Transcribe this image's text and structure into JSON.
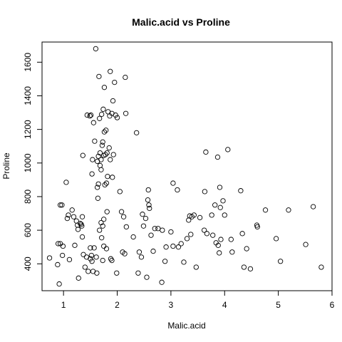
{
  "chart_data": {
    "type": "scatter",
    "title": "Malic.acid vs Proline",
    "xlabel": "Malic.acid",
    "ylabel": "Proline",
    "xlim": [
      0.6,
      6.0
    ],
    "ylim": [
      240,
      1720
    ],
    "xticks": [
      1,
      2,
      3,
      4,
      5,
      6
    ],
    "yticks": [
      400,
      600,
      800,
      1000,
      1200,
      1400,
      1600
    ],
    "grid": false,
    "legend": "none",
    "points": [
      [
        0.74,
        435
      ],
      [
        0.89,
        395
      ],
      [
        0.9,
        520
      ],
      [
        0.92,
        280
      ],
      [
        0.94,
        520
      ],
      [
        0.94,
        750
      ],
      [
        0.97,
        750
      ],
      [
        0.98,
        450
      ],
      [
        0.99,
        505
      ],
      [
        1.05,
        885
      ],
      [
        1.07,
        670
      ],
      [
        1.09,
        690
      ],
      [
        1.11,
        425
      ],
      [
        1.16,
        720
      ],
      [
        1.19,
        680
      ],
      [
        1.21,
        510
      ],
      [
        1.24,
        655
      ],
      [
        1.26,
        630
      ],
      [
        1.27,
        605
      ],
      [
        1.28,
        315
      ],
      [
        1.31,
        640
      ],
      [
        1.33,
        635
      ],
      [
        1.34,
        625
      ],
      [
        1.35,
        680
      ],
      [
        1.35,
        560
      ],
      [
        1.36,
        1045
      ],
      [
        1.37,
        455
      ],
      [
        1.4,
        380
      ],
      [
        1.43,
        440
      ],
      [
        1.44,
        1285
      ],
      [
        1.46,
        355
      ],
      [
        1.49,
        1280
      ],
      [
        1.5,
        495
      ],
      [
        1.5,
        430
      ],
      [
        1.51,
        1285
      ],
      [
        1.52,
        450
      ],
      [
        1.53,
        415
      ],
      [
        1.53,
        935
      ],
      [
        1.54,
        1020
      ],
      [
        1.55,
        355
      ],
      [
        1.56,
        1240
      ],
      [
        1.57,
        495
      ],
      [
        1.58,
        1130
      ],
      [
        1.6,
        1680
      ],
      [
        1.61,
        440
      ],
      [
        1.62,
        345
      ],
      [
        1.63,
        1010
      ],
      [
        1.63,
        855
      ],
      [
        1.64,
        790
      ],
      [
        1.65,
        875
      ],
      [
        1.65,
        1040
      ],
      [
        1.66,
        1515
      ],
      [
        1.67,
        1265
      ],
      [
        1.67,
        600
      ],
      [
        1.68,
        1060
      ],
      [
        1.68,
        985
      ],
      [
        1.7,
        1020
      ],
      [
        1.7,
        960
      ],
      [
        1.7,
        645
      ],
      [
        1.71,
        555
      ],
      [
        1.71,
        1290
      ],
      [
        1.72,
        1105
      ],
      [
        1.73,
        1125
      ],
      [
        1.73,
        625
      ],
      [
        1.73,
        420
      ],
      [
        1.74,
        1320
      ],
      [
        1.75,
        1045
      ],
      [
        1.75,
        505
      ],
      [
        1.75,
        665
      ],
      [
        1.76,
        1185
      ],
      [
        1.76,
        1450
      ],
      [
        1.77,
        870
      ],
      [
        1.78,
        1050
      ],
      [
        1.79,
        1195
      ],
      [
        1.8,
        880
      ],
      [
        1.8,
        490
      ],
      [
        1.81,
        1060
      ],
      [
        1.81,
        710
      ],
      [
        1.82,
        920
      ],
      [
        1.83,
        1305
      ],
      [
        1.85,
        1090
      ],
      [
        1.86,
        1280
      ],
      [
        1.87,
        1020
      ],
      [
        1.87,
        1545
      ],
      [
        1.88,
        430
      ],
      [
        1.9,
        1295
      ],
      [
        1.9,
        420
      ],
      [
        1.91,
        915
      ],
      [
        1.92,
        1370
      ],
      [
        1.93,
        1050
      ],
      [
        1.95,
        1480
      ],
      [
        1.97,
        1285
      ],
      [
        1.99,
        345
      ],
      [
        2.0,
        1270
      ],
      [
        2.05,
        830
      ],
      [
        2.08,
        710
      ],
      [
        2.1,
        470
      ],
      [
        2.12,
        680
      ],
      [
        2.14,
        460
      ],
      [
        2.15,
        1510
      ],
      [
        2.16,
        1295
      ],
      [
        2.17,
        620
      ],
      [
        2.3,
        560
      ],
      [
        2.36,
        1180
      ],
      [
        2.39,
        345
      ],
      [
        2.41,
        470
      ],
      [
        2.45,
        440
      ],
      [
        2.47,
        695
      ],
      [
        2.49,
        625
      ],
      [
        2.53,
        670
      ],
      [
        2.55,
        320
      ],
      [
        2.57,
        780
      ],
      [
        2.58,
        840
      ],
      [
        2.59,
        750
      ],
      [
        2.6,
        730
      ],
      [
        2.63,
        570
      ],
      [
        2.67,
        475
      ],
      [
        2.7,
        610
      ],
      [
        2.76,
        610
      ],
      [
        2.83,
        290
      ],
      [
        2.84,
        600
      ],
      [
        2.89,
        415
      ],
      [
        2.91,
        500
      ],
      [
        3.0,
        590
      ],
      [
        3.04,
        505
      ],
      [
        3.04,
        880
      ],
      [
        3.12,
        840
      ],
      [
        3.14,
        500
      ],
      [
        3.19,
        520
      ],
      [
        3.24,
        410
      ],
      [
        3.3,
        550
      ],
      [
        3.33,
        660
      ],
      [
        3.35,
        685
      ],
      [
        3.37,
        575
      ],
      [
        3.39,
        680
      ],
      [
        3.43,
        690
      ],
      [
        3.47,
        380
      ],
      [
        3.54,
        675
      ],
      [
        3.62,
        600
      ],
      [
        3.63,
        830
      ],
      [
        3.65,
        1065
      ],
      [
        3.67,
        580
      ],
      [
        3.76,
        690
      ],
      [
        3.78,
        570
      ],
      [
        3.82,
        750
      ],
      [
        3.84,
        525
      ],
      [
        3.87,
        1035
      ],
      [
        3.88,
        510
      ],
      [
        3.9,
        465
      ],
      [
        3.91,
        855
      ],
      [
        3.92,
        735
      ],
      [
        3.93,
        545
      ],
      [
        3.97,
        775
      ],
      [
        4.0,
        690
      ],
      [
        4.06,
        1080
      ],
      [
        4.12,
        545
      ],
      [
        4.14,
        470
      ],
      [
        4.3,
        835
      ],
      [
        4.33,
        580
      ],
      [
        4.36,
        380
      ],
      [
        4.41,
        490
      ],
      [
        4.48,
        370
      ],
      [
        4.6,
        630
      ],
      [
        4.61,
        620
      ],
      [
        4.76,
        720
      ],
      [
        4.96,
        550
      ],
      [
        5.04,
        415
      ],
      [
        5.19,
        720
      ],
      [
        5.51,
        515
      ],
      [
        5.65,
        740
      ],
      [
        5.8,
        380
      ]
    ]
  }
}
